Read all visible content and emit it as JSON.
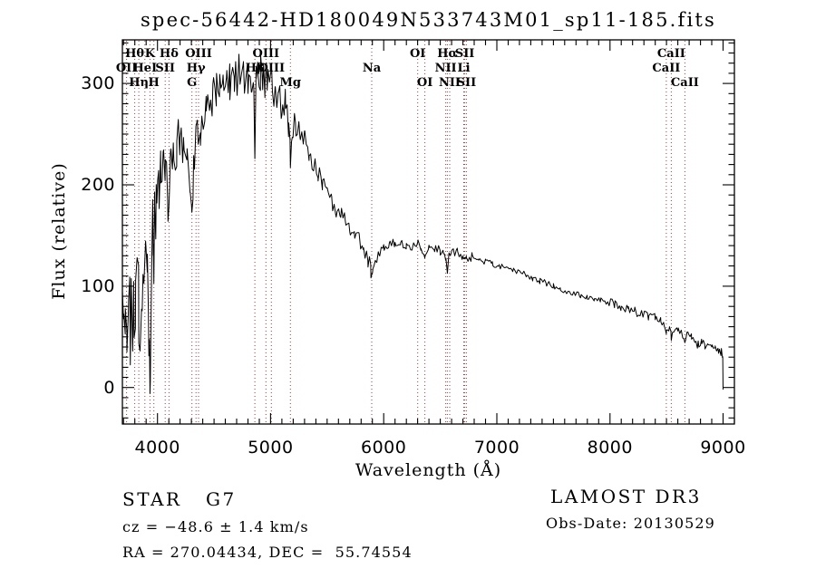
{
  "title": "spec-56442-HD180049N533743M01_sp11-185.fits",
  "chart_data": {
    "type": "line",
    "title": "spec-56442-HD180049N533743M01_sp11-185.fits",
    "xlabel": "Wavelength (Å)",
    "ylabel": "Flux (relative)",
    "xlim": [
      3690,
      9100
    ],
    "ylim": [
      -36,
      343
    ],
    "xticks": [
      4000,
      5000,
      6000,
      7000,
      8000,
      9000
    ],
    "yticks": [
      0,
      100,
      200,
      300
    ],
    "x_minor_step": 100,
    "y_minor_step": 10,
    "grid": false,
    "legend": "none",
    "curve_color": "#000000",
    "line_marker_color": "#a83c3c",
    "spectral_lines": [
      {
        "label": "Hθ",
        "wavelength": 3798.98,
        "row": 1
      },
      {
        "label": "K",
        "wavelength": 3933.66,
        "row": 1
      },
      {
        "label": "Hδ",
        "wavelength": 4101.74,
        "row": 1
      },
      {
        "label": "OIII",
        "wavelength": 4363.21,
        "row": 1
      },
      {
        "label": "OIII",
        "wavelength": 4958.91,
        "row": 1
      },
      {
        "label": "OI",
        "wavelength": 6300.3,
        "row": 1
      },
      {
        "label": "Hα",
        "wavelength": 6562.8,
        "row": 1
      },
      {
        "label": "SII",
        "wavelength": 6716.44,
        "row": 1
      },
      {
        "label": "CaII",
        "wavelength": 8542.09,
        "row": 1
      },
      {
        "label": "OII",
        "wavelength": 3727.09,
        "row": 2
      },
      {
        "label": "HeI",
        "wavelength": 3888.65,
        "row": 2
      },
      {
        "label": "SII",
        "wavelength": 4068.6,
        "row": 2
      },
      {
        "label": "Hγ",
        "wavelength": 4340.46,
        "row": 2
      },
      {
        "label": "Hβ",
        "wavelength": 4861.34,
        "row": 2
      },
      {
        "label": "OIII",
        "wavelength": 5006.84,
        "row": 2
      },
      {
        "label": "Na",
        "wavelength": 5893.96,
        "row": 2
      },
      {
        "label": "NII",
        "wavelength": 6548.05,
        "row": 2
      },
      {
        "label": "Li",
        "wavelength": 6707.89,
        "row": 2
      },
      {
        "label": "CaII",
        "wavelength": 8498.02,
        "row": 2
      },
      {
        "label": "Hη",
        "wavelength": 3835.4,
        "row": 3
      },
      {
        "label": "H",
        "wavelength": 3968.47,
        "row": 3
      },
      {
        "label": "G",
        "wavelength": 4304.4,
        "row": 3
      },
      {
        "label": "Mg",
        "wavelength": 5175.36,
        "row": 3
      },
      {
        "label": "OI",
        "wavelength": 6363.78,
        "row": 3
      },
      {
        "label": "NII",
        "wavelength": 6583.45,
        "row": 3
      },
      {
        "label": "SII",
        "wavelength": 6730.82,
        "row": 3
      },
      {
        "label": "CaII",
        "wavelength": 8662.14,
        "row": 3
      }
    ],
    "series": [
      {
        "name": "spectrum",
        "points": [
          [
            3690,
            75
          ],
          [
            3700,
            55
          ],
          [
            3715,
            62
          ],
          [
            3730,
            55
          ],
          [
            3745,
            68
          ],
          [
            3760,
            72
          ],
          [
            3775,
            78
          ],
          [
            3790,
            84
          ],
          [
            3805,
            88
          ],
          [
            3820,
            80
          ],
          [
            3835,
            86
          ],
          [
            3850,
            92
          ],
          [
            3865,
            97
          ],
          [
            3880,
            90
          ],
          [
            3895,
            100
          ],
          [
            3910,
            92
          ],
          [
            3920,
            80
          ],
          [
            3929,
            45
          ],
          [
            3934,
            6
          ],
          [
            3940,
            60
          ],
          [
            3950,
            125
          ],
          [
            3958,
            148
          ],
          [
            3964,
            122
          ],
          [
            3968,
            106
          ],
          [
            3975,
            140
          ],
          [
            3985,
            163
          ],
          [
            3995,
            175
          ],
          [
            4010,
            195
          ],
          [
            4030,
            208
          ],
          [
            4050,
            216
          ],
          [
            4070,
            202
          ],
          [
            4090,
            188
          ],
          [
            4101,
            170
          ],
          [
            4115,
            205
          ],
          [
            4140,
            228
          ],
          [
            4170,
            240
          ],
          [
            4200,
            236
          ],
          [
            4230,
            231
          ],
          [
            4260,
            228
          ],
          [
            4290,
            216
          ],
          [
            4304,
            178
          ],
          [
            4320,
            215
          ],
          [
            4340,
            232
          ],
          [
            4360,
            248
          ],
          [
            4380,
            256
          ],
          [
            4400,
            264
          ],
          [
            4430,
            271
          ],
          [
            4460,
            278
          ],
          [
            4490,
            285
          ],
          [
            4520,
            290
          ],
          [
            4550,
            294
          ],
          [
            4580,
            298
          ],
          [
            4610,
            301
          ],
          [
            4640,
            303
          ],
          [
            4680,
            306
          ],
          [
            4720,
            309
          ],
          [
            4760,
            308
          ],
          [
            4800,
            306
          ],
          [
            4830,
            304
          ],
          [
            4852,
            298
          ],
          [
            4861,
            230
          ],
          [
            4872,
            300
          ],
          [
            4890,
            312
          ],
          [
            4910,
            310
          ],
          [
            4930,
            307
          ],
          [
            4950,
            304
          ],
          [
            4970,
            302
          ],
          [
            4990,
            299
          ],
          [
            5010,
            297
          ],
          [
            5040,
            293
          ],
          [
            5070,
            288
          ],
          [
            5100,
            283
          ],
          [
            5130,
            276
          ],
          [
            5160,
            255
          ],
          [
            5175,
            222
          ],
          [
            5192,
            258
          ],
          [
            5220,
            260
          ],
          [
            5260,
            254
          ],
          [
            5300,
            245
          ],
          [
            5340,
            232
          ],
          [
            5380,
            220
          ],
          [
            5420,
            211
          ],
          [
            5460,
            201
          ],
          [
            5500,
            193
          ],
          [
            5540,
            185
          ],
          [
            5580,
            177
          ],
          [
            5620,
            170
          ],
          [
            5660,
            163
          ],
          [
            5700,
            157
          ],
          [
            5740,
            151
          ],
          [
            5780,
            144
          ],
          [
            5820,
            136
          ],
          [
            5860,
            126
          ],
          [
            5885,
            116
          ],
          [
            5894,
            110
          ],
          [
            5905,
            118
          ],
          [
            5930,
            126
          ],
          [
            5960,
            132
          ],
          [
            6000,
            137
          ],
          [
            6050,
            141
          ],
          [
            6100,
            143
          ],
          [
            6150,
            142
          ],
          [
            6200,
            141
          ],
          [
            6250,
            139
          ],
          [
            6300,
            142
          ],
          [
            6330,
            137
          ],
          [
            6363,
            132
          ],
          [
            6400,
            138
          ],
          [
            6450,
            137
          ],
          [
            6500,
            135
          ],
          [
            6530,
            133
          ],
          [
            6548,
            128
          ],
          [
            6563,
            112
          ],
          [
            6578,
            130
          ],
          [
            6600,
            134
          ],
          [
            6650,
            133
          ],
          [
            6700,
            129
          ],
          [
            6716,
            124
          ],
          [
            6731,
            127
          ],
          [
            6780,
            129
          ],
          [
            6840,
            127
          ],
          [
            6900,
            124
          ],
          [
            6960,
            122
          ],
          [
            7020,
            120
          ],
          [
            7080,
            118
          ],
          [
            7140,
            115
          ],
          [
            7200,
            114
          ],
          [
            7260,
            111
          ],
          [
            7320,
            108
          ],
          [
            7380,
            105
          ],
          [
            7440,
            103
          ],
          [
            7500,
            100
          ],
          [
            7560,
            98
          ],
          [
            7620,
            95
          ],
          [
            7680,
            93
          ],
          [
            7740,
            91
          ],
          [
            7800,
            89
          ],
          [
            7860,
            87
          ],
          [
            7920,
            86
          ],
          [
            7980,
            84
          ],
          [
            8040,
            82
          ],
          [
            8100,
            80
          ],
          [
            8160,
            78
          ],
          [
            8220,
            75
          ],
          [
            8280,
            73
          ],
          [
            8340,
            71
          ],
          [
            8400,
            69
          ],
          [
            8450,
            66
          ],
          [
            8480,
            60
          ],
          [
            8498,
            54
          ],
          [
            8520,
            60
          ],
          [
            8542,
            50
          ],
          [
            8565,
            58
          ],
          [
            8600,
            56
          ],
          [
            8630,
            53
          ],
          [
            8662,
            45
          ],
          [
            8690,
            55
          ],
          [
            8720,
            50
          ],
          [
            8750,
            46
          ],
          [
            8780,
            42
          ],
          [
            8810,
            46
          ],
          [
            8840,
            42
          ],
          [
            8870,
            40
          ],
          [
            8900,
            39
          ],
          [
            8930,
            38
          ],
          [
            8960,
            36
          ],
          [
            8985,
            35
          ],
          [
            8997,
            33
          ],
          [
            9000,
            -2
          ]
        ]
      }
    ],
    "noise_regions": [
      {
        "from": 3690,
        "to": 3760,
        "amp": 40
      },
      {
        "from": 3760,
        "to": 3995,
        "amp": 55
      },
      {
        "from": 3995,
        "to": 4400,
        "amp": 28
      },
      {
        "from": 4400,
        "to": 5250,
        "amp": 20
      },
      {
        "from": 5250,
        "to": 5900,
        "amp": 9
      },
      {
        "from": 5900,
        "to": 6800,
        "amp": 4.5
      },
      {
        "from": 6800,
        "to": 8000,
        "amp": 3
      },
      {
        "from": 8000,
        "to": 9001,
        "amp": 4.5
      }
    ]
  },
  "annotations": {
    "class_label": "STAR   G7",
    "cz_label": "cz = −48.6 ± 1.4 km/s",
    "radec_label": "RA = 270.04434, DEC =  55.74554",
    "survey_label": "LAMOST DR3",
    "obsdate_label": "Obs-Date: 20130529"
  }
}
